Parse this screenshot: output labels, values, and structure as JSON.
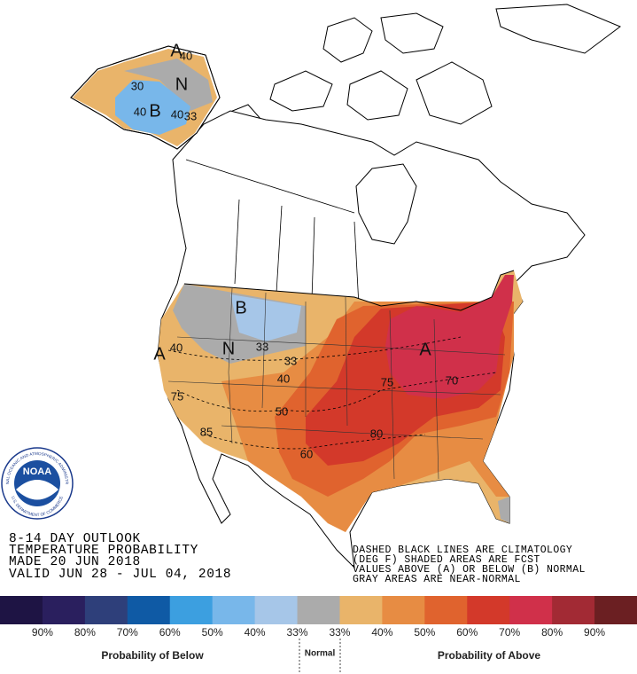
{
  "header": {
    "lines": [
      "8-14 DAY OUTLOOK",
      "TEMPERATURE PROBABILITY",
      "MADE  20 JUN 2018",
      "VALID  JUN 28 - JUL 04, 2018"
    ]
  },
  "notes": [
    "DASHED BLACK LINES ARE CLIMATOLOGY",
    "(DEG F) SHADED AREAS ARE FCST",
    "VALUES ABOVE (A) OR BELOW (B) NORMAL",
    "GRAY AREAS ARE NEAR-NORMAL"
  ],
  "logo": {
    "name": "NOAA",
    "ring_top": "NATIONAL OCEANIC AND ATMOSPHERIC ADMINISTRATION",
    "ring_bottom": "U.S. DEPARTMENT OF COMMERCE"
  },
  "map_labels": [
    "A",
    "40",
    "30",
    "N",
    "40",
    "B",
    "40",
    "33",
    "B",
    "N",
    "33",
    "A",
    "40",
    "33",
    "40",
    "75",
    "50",
    "60",
    "85",
    "80",
    "A",
    "70",
    "75"
  ],
  "legend": {
    "colors": [
      "#1e1444",
      "#2a1f5e",
      "#2e3f7a",
      "#0f5aa5",
      "#3c9fe0",
      "#78b7ea",
      "#a6c6e8",
      "#ababab",
      "#e9b46a",
      "#e78c43",
      "#e0632e",
      "#d3392a",
      "#d0304a",
      "#a22a34",
      "#6b1f22"
    ],
    "labels": [
      "90%",
      "80%",
      "70%",
      "60%",
      "50%",
      "40%",
      "33%",
      "33%",
      "40%",
      "50%",
      "60%",
      "70%",
      "80%",
      "90%"
    ],
    "below_title": "Probability of Below",
    "normal_title": "Normal",
    "above_title": "Probability of Above"
  }
}
